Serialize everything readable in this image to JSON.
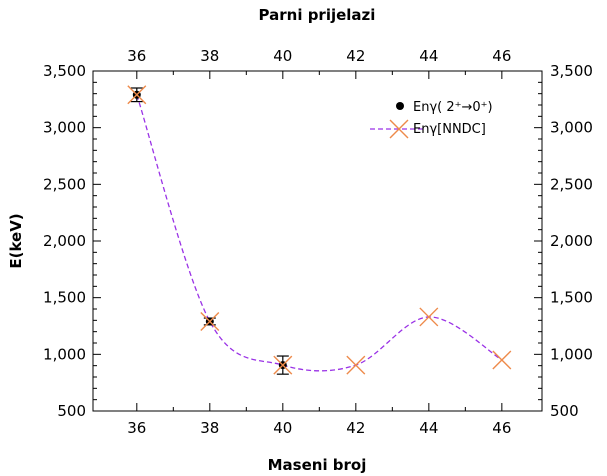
{
  "chart_data": {
    "type": "scatter",
    "title": "",
    "xlabel": "Maseni broj",
    "x2label": "Parni prijelazi",
    "ylabel": "E(keV)",
    "xlim": [
      34.8,
      47.1
    ],
    "ylim": [
      500,
      3500
    ],
    "x_ticks": [
      36,
      38,
      40,
      42,
      44,
      46
    ],
    "x_tick_labels": [
      "36",
      "38",
      "40",
      "42",
      "44",
      "46"
    ],
    "y_ticks": [
      500,
      1000,
      1500,
      2000,
      2500,
      3000,
      3500
    ],
    "y_tick_labels": [
      "500",
      "1,000",
      "1,500",
      "2,000",
      "2,500",
      "3,000",
      "3,500"
    ],
    "grid": false,
    "legend_position": "top-right",
    "series": [
      {
        "name": "Enγ( 2⁺→0⁺)",
        "marker": "filled-circle",
        "color": "#000000",
        "x": [
          36,
          38,
          40
        ],
        "y": [
          3290,
          1290,
          905
        ],
        "y_err": [
          60,
          30,
          80
        ]
      },
      {
        "name": "Enγ[NNDC]",
        "marker": "x-cross",
        "color": "#ee8a4a",
        "line_color": "#9a32e6",
        "line_style": "dashed-spline",
        "x": [
          36,
          38,
          40,
          42,
          44,
          46
        ],
        "y": [
          3290,
          1290,
          905,
          905,
          1330,
          950
        ]
      }
    ]
  }
}
